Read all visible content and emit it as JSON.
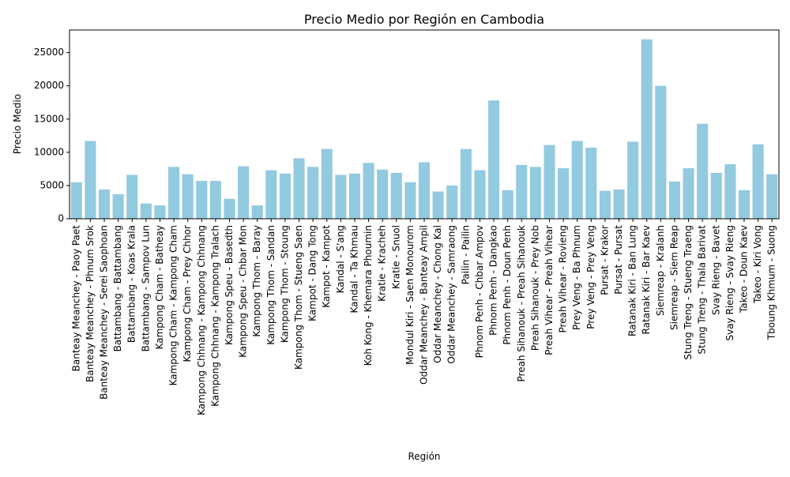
{
  "chart_data": {
    "type": "bar",
    "title": "Precio Medio por Región en Cambodia",
    "xlabel": "Región",
    "ylabel": "Precio Medio",
    "ylim": [
      0,
      28400
    ],
    "yticks": [
      0,
      5000,
      10000,
      15000,
      20000,
      25000
    ],
    "grid": false,
    "bar_color": "#92cae0",
    "categories": [
      "Banteay Meanchey - Paoy Paet",
      "Banteay Meanchey - Phnum Srok",
      "Banteay Meanchey - Serei Saophoan",
      "Battambang - Battambang",
      "Battambang - Koas Krala",
      "Battambang - Sampov Lun",
      "Kampong Cham - Batheay",
      "Kampong Cham - Kampong Cham",
      "Kampong Cham - Prey Chhor",
      "Kampong Chhnang - Kampong Chhnang",
      "Kampong Chhnang - Kampong Tralach",
      "Kampong Speu - Basedth",
      "Kampong Speu - Chbar Mon",
      "Kampong Thom - Baray",
      "Kampong Thom - Sandan",
      "Kampong Thom - Stoung",
      "Kampong Thom - Stueng Saen",
      "Kampot - Dang Tong",
      "Kampot - Kampot",
      "Kandal - S'ang",
      "Kandal - Ta Khmau",
      "Koh Kong - Khemara Phoumin",
      "Kratie - Kracheh",
      "Kratie - Snuol",
      "Mondul Kiri - Saen Monourom",
      "Oddar Meanchey - Banteay Ampil",
      "Oddar Meanchey - Chong Kal",
      "Oddar Meanchey - Samraong",
      "Pailin - Pailin",
      "Phnom Penh - Chbar Ampov",
      "Phnom Penh - Dangkao",
      "Phnom Penh - Doun Penh",
      "Preah Sihanouk - Preah Sihanouk",
      "Preah Sihanouk - Prey Nob",
      "Preah Vihear - Preah Vihear",
      "Preah Vihear - Rovieng",
      "Prey Veng - Ba Phnum",
      "Prey Veng - Prey Veng",
      "Pursat - Krakor",
      "Pursat - Pursat",
      "Ratanak Kiri - Ban Lung",
      "Ratanak Kiri - Bar Kaev",
      "Siemreap - Kralanh",
      "Siemreap - Siem Reap",
      "Stung Treng - Stueng Traeng",
      "Stung Treng - Thala Barivat",
      "Svay Rieng - Bavet",
      "Svay Rieng - Svay Rieng",
      "Takeo - Doun Kaev",
      "Takeo - Kiri Vong",
      "Tboung Khmum - Suong"
    ],
    "values": [
      5500,
      11700,
      4400,
      3700,
      6600,
      2300,
      2000,
      7800,
      6700,
      5700,
      5700,
      3000,
      7900,
      2000,
      7300,
      6800,
      9100,
      7800,
      10500,
      6600,
      6800,
      8400,
      7400,
      6900,
      5500,
      8500,
      4100,
      5000,
      10500,
      7300,
      17800,
      4300,
      8100,
      7800,
      11100,
      7600,
      11700,
      10700,
      4200,
      4400,
      11600,
      27000,
      20000,
      5600,
      7600,
      14300,
      6900,
      8200,
      4300,
      11200,
      6700
    ]
  }
}
